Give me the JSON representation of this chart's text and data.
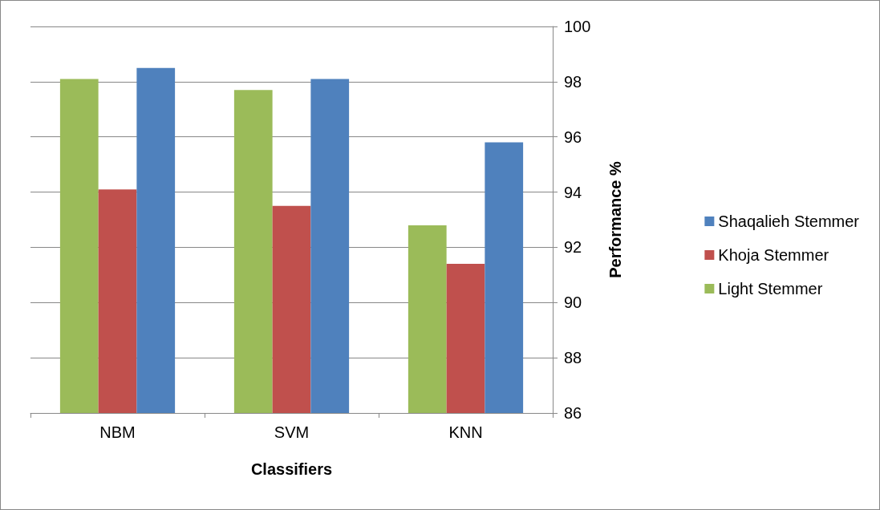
{
  "chart_data": {
    "type": "bar",
    "xlabel": "Classifiers",
    "ylabel": "Performance %",
    "categories": [
      "NBM",
      "SVM",
      "KNN"
    ],
    "series": [
      {
        "name": "Light Stemmer",
        "color": "#9bbb59",
        "values": [
          98.1,
          97.7,
          92.8
        ]
      },
      {
        "name": "Khoja Stemmer",
        "color": "#c0504d",
        "values": [
          94.1,
          93.5,
          91.4
        ]
      },
      {
        "name": "Shaqalieh Stemmer",
        "color": "#4f81bd",
        "values": [
          98.5,
          98.1,
          95.8
        ]
      }
    ],
    "ylim": [
      86,
      100
    ],
    "yticks": [
      86,
      88,
      90,
      92,
      94,
      96,
      98,
      100
    ],
    "grid": "y",
    "legend": "right"
  }
}
